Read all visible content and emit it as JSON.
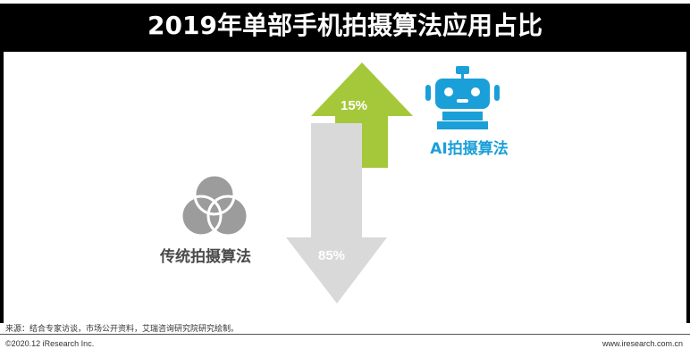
{
  "title": "2019年单部手机拍摄算法应用占比",
  "colors": {
    "ai": "#a5c83a",
    "traditional": "#d9d9d9",
    "ai_label": "#1b9fd8",
    "traditional_icon": "#9c9c9c"
  },
  "icons": {
    "ai": "robot-icon",
    "traditional": "venn-circles-icon"
  },
  "chart_data": {
    "type": "bar",
    "title": "2019年单部手机拍摄算法应用占比",
    "categories": [
      "AI拍摄算法",
      "传统拍摄算法"
    ],
    "values": [
      15,
      85
    ],
    "value_labels": [
      "15%",
      "85%"
    ],
    "unit": "%",
    "ylim": [
      0,
      100
    ],
    "grid": false,
    "legend": "none"
  },
  "source": "来源：结合专家访谈，市场公开资料，艾瑞咨询研究院研究绘制。",
  "footer": {
    "copyright": "©2020.12 iResearch Inc.",
    "website": "www.iresearch.com.cn"
  }
}
